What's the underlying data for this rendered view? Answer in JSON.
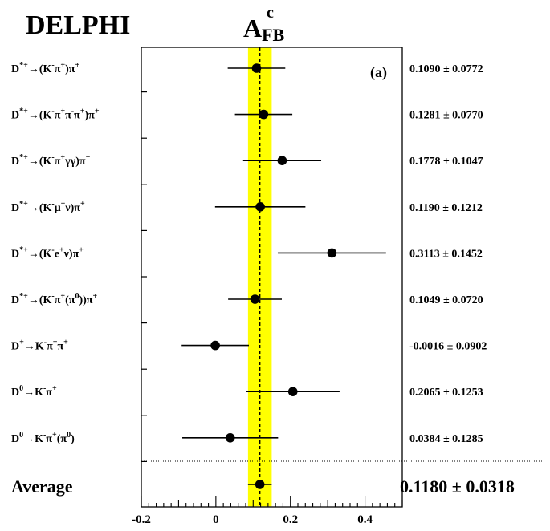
{
  "experiment": "DELPHI",
  "chart_data": {
    "type": "scatter",
    "title": "A",
    "title_sup": "c",
    "title_sub": "FB",
    "panel_label": "(a)",
    "average_label": "Average",
    "xlim": [
      -0.2,
      0.5
    ],
    "x_ticks": [
      "-0.2",
      "0",
      "0.2",
      "0.4"
    ],
    "band_color": "#ffff00",
    "points": [
      {
        "label": "D*+→(K-π+)π+",
        "value": 0.109,
        "error": 0.0772,
        "text": "0.1090 ± 0.0772"
      },
      {
        "label": "D*+→(K-π+π-π+)π+",
        "value": 0.1281,
        "error": 0.077,
        "text": "0.1281 ± 0.0770"
      },
      {
        "label": "D*+→(K-π+γγ)π+",
        "value": 0.1778,
        "error": 0.1047,
        "text": "0.1778 ± 0.1047"
      },
      {
        "label": "D*+→(K-μ+ν)π+",
        "value": 0.119,
        "error": 0.1212,
        "text": "0.1190 ± 0.1212"
      },
      {
        "label": "D*+→(K-e+ν)π+",
        "value": 0.3113,
        "error": 0.1452,
        "text": "0.3113 ± 0.1452"
      },
      {
        "label": "D*+→(K-π+(π0))π+",
        "value": 0.1049,
        "error": 0.072,
        "text": "0.1049 ± 0.0720"
      },
      {
        "label": "D+→K-π+π+",
        "value": -0.0016,
        "error": 0.0902,
        "text": "-0.0016 ± 0.0902"
      },
      {
        "label": "D0→K-π+",
        "value": 0.2065,
        "error": 0.1253,
        "text": "0.2065 ± 0.1253"
      },
      {
        "label": "D0→K-π+(π0)",
        "value": 0.0384,
        "error": 0.1285,
        "text": "0.0384 ± 0.1285"
      }
    ],
    "average": {
      "value": 0.118,
      "error": 0.0318,
      "text": "0.1180 ± 0.0318"
    }
  }
}
